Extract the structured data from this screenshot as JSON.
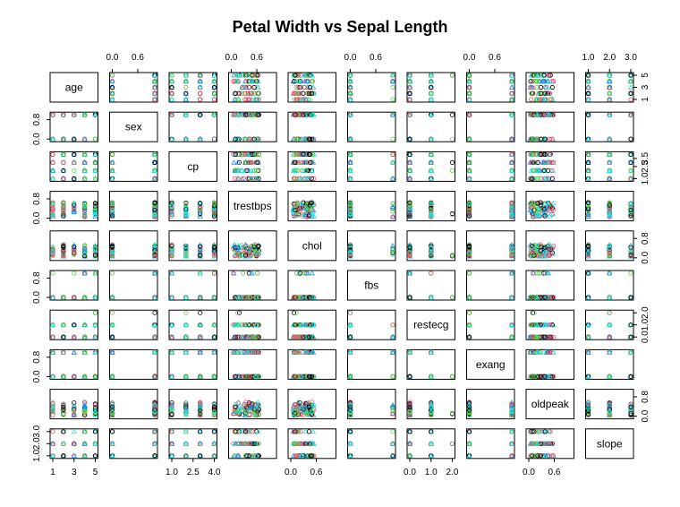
{
  "chart_data": {
    "type": "scatter",
    "subtype": "pairs-matrix",
    "title": "Petal Width vs Sepal Length",
    "variables": [
      "age",
      "sex",
      "cp",
      "trestbps",
      "chol",
      "fbs",
      "restecg",
      "exang",
      "oldpeak",
      "slope"
    ],
    "ranges": {
      "age": [
        1,
        5
      ],
      "sex": [
        0,
        1
      ],
      "cp": [
        1,
        4
      ],
      "trestbps": [
        0,
        1
      ],
      "chol": [
        0,
        1
      ],
      "fbs": [
        0,
        1
      ],
      "restecg": [
        0,
        2
      ],
      "exang": [
        0,
        1
      ],
      "oldpeak": [
        0,
        1
      ],
      "slope": [
        1,
        3
      ]
    },
    "axis_ticks": {
      "top": {
        "sex": [
          "0.0",
          "0.6"
        ],
        "trestbps": [
          "0.0",
          "0.6"
        ],
        "fbs": [
          "0.0",
          "0.6"
        ],
        "exang": [
          "0.0",
          "0.6"
        ],
        "slope": [
          "1.0",
          "2.0",
          "3.0"
        ]
      },
      "bottom": {
        "age": [
          "1",
          "3",
          "5"
        ],
        "cp": [
          "1.0",
          "2.5",
          "4.0"
        ],
        "chol": [
          "0.0",
          "0.6"
        ],
        "restecg": [
          "0.0",
          "1.0",
          "2.0"
        ],
        "oldpeak": [
          "0.0",
          "0.6"
        ]
      },
      "left": {
        "sex": [
          "0.0",
          "0.8"
        ],
        "trestbps": [
          "0.0",
          "0.8"
        ],
        "fbs": [
          "0.0",
          "0.8"
        ],
        "exang": [
          "0.0",
          "0.8"
        ],
        "slope": [
          "1.0",
          "2.0",
          "3.0"
        ]
      },
      "right": {
        "age": [
          "1",
          "3",
          "5"
        ],
        "cp": [
          "1.0",
          "2.5",
          "3.5"
        ],
        "chol": [
          "0.0",
          "0.8"
        ],
        "restecg": [
          "0.0",
          "1.0",
          "2.0"
        ],
        "oldpeak": [
          "0.0",
          "0.8"
        ]
      }
    },
    "group_colors": [
      "#000000",
      "#DF536B",
      "#61D04F",
      "#2297E6",
      "#28E2E5"
    ],
    "group_shapes": [
      "circle",
      "circle",
      "circle",
      "triangle",
      "triangle"
    ],
    "grid": false,
    "legend": "none"
  }
}
